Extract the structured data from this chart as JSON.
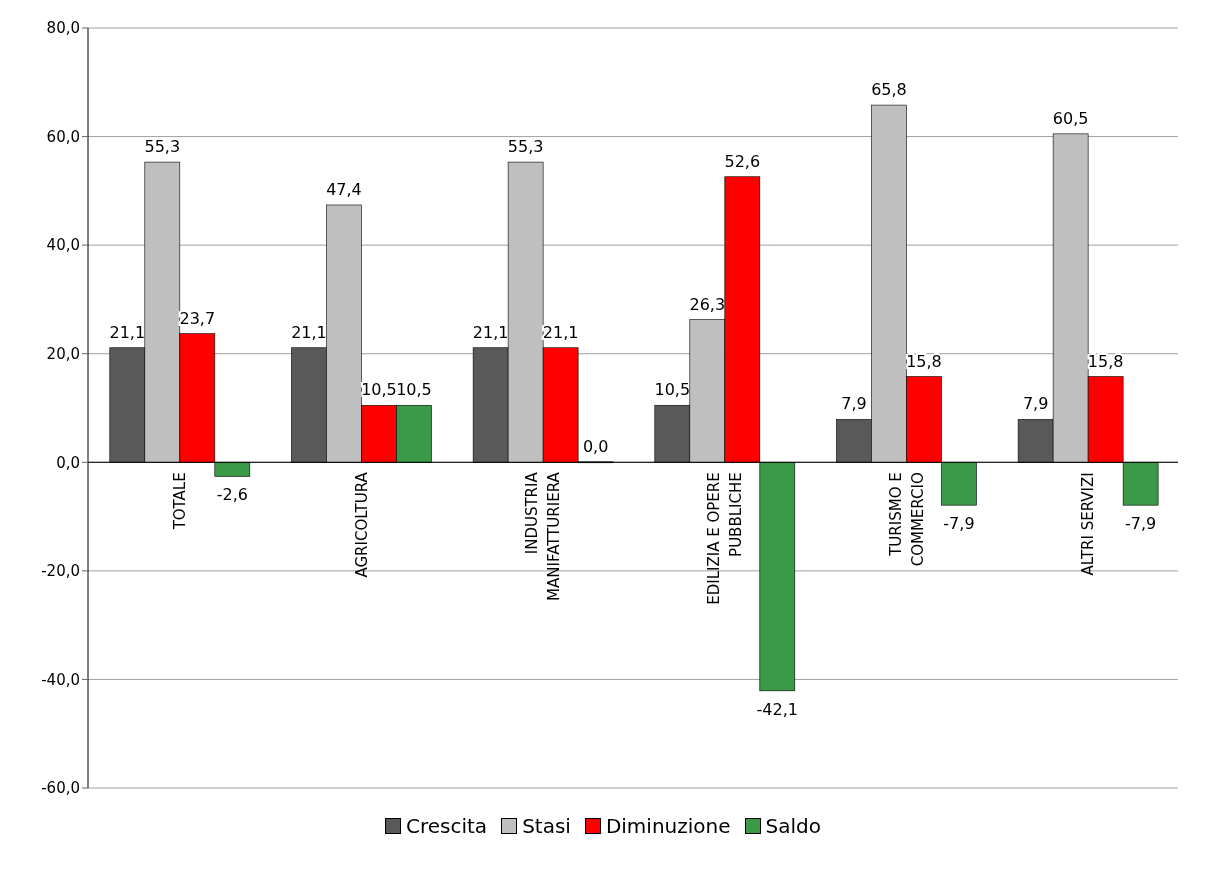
{
  "chart_data": {
    "type": "bar",
    "categories": [
      "TOTALE",
      "AGRICOLTURA",
      "INDUSTRIA MANIFATTURIERA",
      "EDILIZIA E OPERE PUBBLICHE",
      "TURISMO E COMMERCIO",
      "ALTRI SERVIZI"
    ],
    "series": [
      {
        "name": "Crescita",
        "color": "#595959",
        "values": [
          21.1,
          21.1,
          21.1,
          10.5,
          7.9,
          7.9
        ],
        "value_labels": [
          "21,1",
          "21,1",
          "21,1",
          "10,5",
          "7,9",
          "7,9"
        ]
      },
      {
        "name": "Stasi",
        "color": "#bfbfbf",
        "values": [
          55.3,
          47.4,
          55.3,
          26.3,
          65.8,
          60.5
        ],
        "value_labels": [
          "55,3",
          "47,4",
          "55,3",
          "26,3",
          "65,8",
          "60,5"
        ]
      },
      {
        "name": "Diminuzione",
        "color": "#ff0000",
        "values": [
          23.7,
          10.5,
          21.1,
          52.6,
          15.8,
          15.8
        ],
        "value_labels": [
          "23,7",
          "10,5",
          "21,1",
          "52,6",
          "15,8",
          "15,8"
        ]
      },
      {
        "name": "Saldo",
        "color": "#3a9a48",
        "values": [
          -2.6,
          10.5,
          0.0,
          -42.1,
          -7.9,
          -7.9
        ],
        "value_labels": [
          "-2,6",
          "10,5",
          "0,0",
          "-42,1",
          "-7,9",
          "-7,9"
        ]
      }
    ],
    "ylim": [
      -60,
      80
    ],
    "yticks": [
      {
        "value": -60,
        "label": "-60,0"
      },
      {
        "value": -40,
        "label": "-40,0"
      },
      {
        "value": -20,
        "label": "-20,0"
      },
      {
        "value": 0,
        "label": "0,0"
      },
      {
        "value": 20,
        "label": "20,0"
      },
      {
        "value": 40,
        "label": "40,0"
      },
      {
        "value": 60,
        "label": "60,0"
      },
      {
        "value": 80,
        "label": "80,0"
      }
    ],
    "grid": "y",
    "legend": "bottom"
  }
}
